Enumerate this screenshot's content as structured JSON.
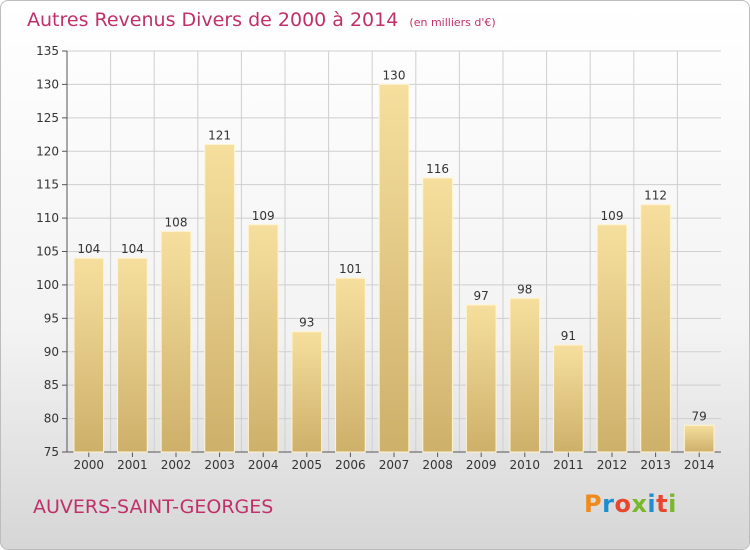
{
  "title": "Autres Revenus Divers de 2000 à 2014",
  "unit_note": "(en milliers d'€)",
  "commune": "AUVERS-SAINT-GEORGES",
  "logo_text": "Proxiti",
  "colors": {
    "title": "#c0306a",
    "bar_light": "#f6df9e",
    "bar_dark": "#cdb06a",
    "grid": "#cfcfcf",
    "axis": "#555555",
    "logo": [
      "#f08a1c",
      "#1f8ed0",
      "#e8462e",
      "#79b82a",
      "#1f8ed0",
      "#e8462e",
      "#79b82a"
    ]
  },
  "chart_data": {
    "type": "bar",
    "categories": [
      "2000",
      "2001",
      "2002",
      "2003",
      "2004",
      "2005",
      "2006",
      "2007",
      "2008",
      "2009",
      "2010",
      "2011",
      "2012",
      "2013",
      "2014"
    ],
    "values": [
      104,
      104,
      108,
      121,
      109,
      93,
      101,
      130,
      116,
      97,
      98,
      91,
      109,
      112,
      79
    ],
    "ylim": [
      75,
      135
    ],
    "yticks": [
      75,
      80,
      85,
      90,
      95,
      100,
      105,
      110,
      115,
      120,
      125,
      130,
      135
    ],
    "grid": true,
    "data_labels": true
  }
}
